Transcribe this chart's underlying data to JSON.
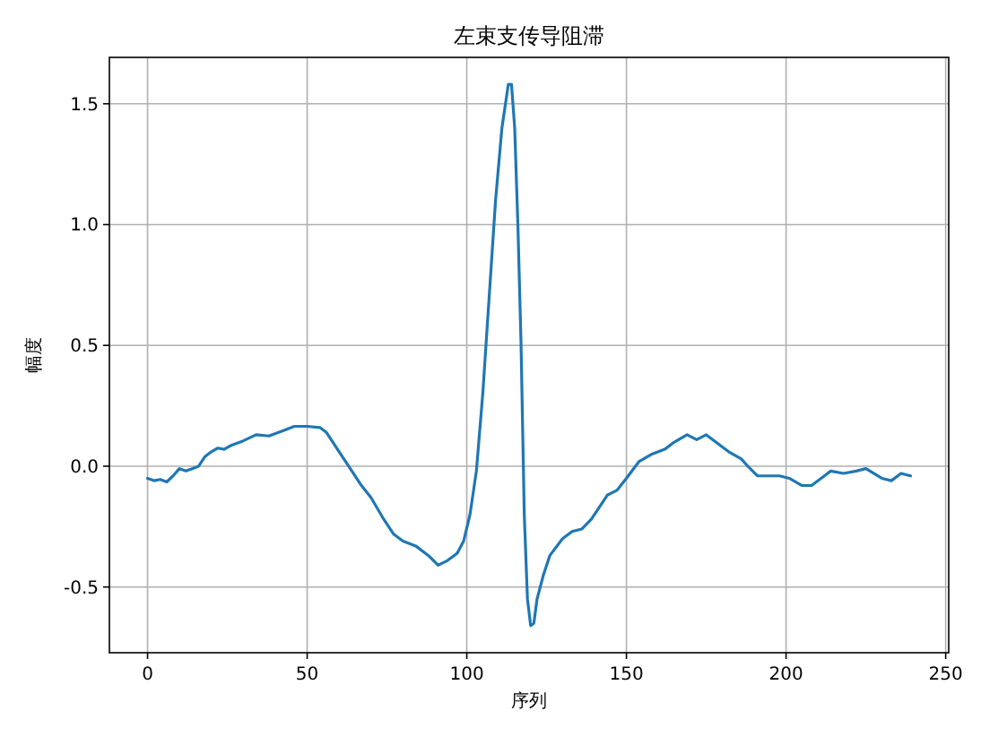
{
  "chart_data": {
    "type": "line",
    "title": "左束支传导阻滞",
    "xlabel": "序列",
    "ylabel": "幅度",
    "x": [
      0,
      2,
      4,
      6,
      8,
      10,
      12,
      14,
      16,
      18,
      20,
      22,
      24,
      26,
      30,
      34,
      38,
      42,
      46,
      50,
      54,
      56,
      60,
      64,
      67,
      70,
      74,
      77,
      80,
      84,
      88,
      91,
      94,
      97,
      99,
      101,
      103,
      105,
      107,
      109,
      111,
      113,
      114,
      115,
      116,
      117,
      118,
      119,
      120,
      121,
      122,
      124,
      126,
      130,
      133,
      136,
      139,
      142,
      144,
      147,
      150,
      154,
      158,
      162,
      165,
      169,
      172,
      175,
      178,
      182,
      186,
      188,
      191,
      194,
      198,
      201,
      205,
      208,
      212,
      214,
      218,
      222,
      225,
      230,
      233,
      236,
      239
    ],
    "series": [
      {
        "color": "#1f77b4",
        "values": [
          -0.05,
          -0.06,
          -0.055,
          -0.065,
          -0.04,
          -0.01,
          -0.02,
          -0.01,
          0.0,
          0.04,
          0.06,
          0.075,
          0.07,
          0.085,
          0.105,
          0.13,
          0.125,
          0.145,
          0.165,
          0.165,
          0.16,
          0.14,
          0.06,
          -0.02,
          -0.08,
          -0.13,
          -0.22,
          -0.28,
          -0.31,
          -0.33,
          -0.37,
          -0.41,
          -0.39,
          -0.36,
          -0.31,
          -0.2,
          -0.02,
          0.3,
          0.7,
          1.1,
          1.4,
          1.58,
          1.58,
          1.4,
          1.0,
          0.5,
          -0.2,
          -0.55,
          -0.66,
          -0.65,
          -0.55,
          -0.45,
          -0.37,
          -0.3,
          -0.27,
          -0.26,
          -0.22,
          -0.16,
          -0.12,
          -0.1,
          -0.05,
          0.02,
          0.05,
          0.07,
          0.1,
          0.13,
          0.11,
          0.13,
          0.1,
          0.06,
          0.03,
          0.0,
          -0.04,
          -0.04,
          -0.04,
          -0.05,
          -0.08,
          -0.08,
          -0.04,
          -0.02,
          -0.03,
          -0.02,
          -0.01,
          -0.05,
          -0.06,
          -0.03,
          -0.04
        ]
      }
    ],
    "xlim": [
      -11.95,
      250.95
    ],
    "ylim": [
      -0.772,
      1.692
    ],
    "xticks": [
      0,
      50,
      100,
      150,
      200,
      250
    ],
    "yticks": [
      {
        "value": -0.5,
        "label": "-0.5"
      },
      {
        "value": 0,
        "label": "0.0"
      },
      {
        "value": 0.5,
        "label": "0.5"
      },
      {
        "value": 1.0,
        "label": "1.0"
      },
      {
        "value": 1.5,
        "label": "1.5"
      }
    ],
    "grid": true,
    "marker": "none",
    "line_style": "solid"
  }
}
